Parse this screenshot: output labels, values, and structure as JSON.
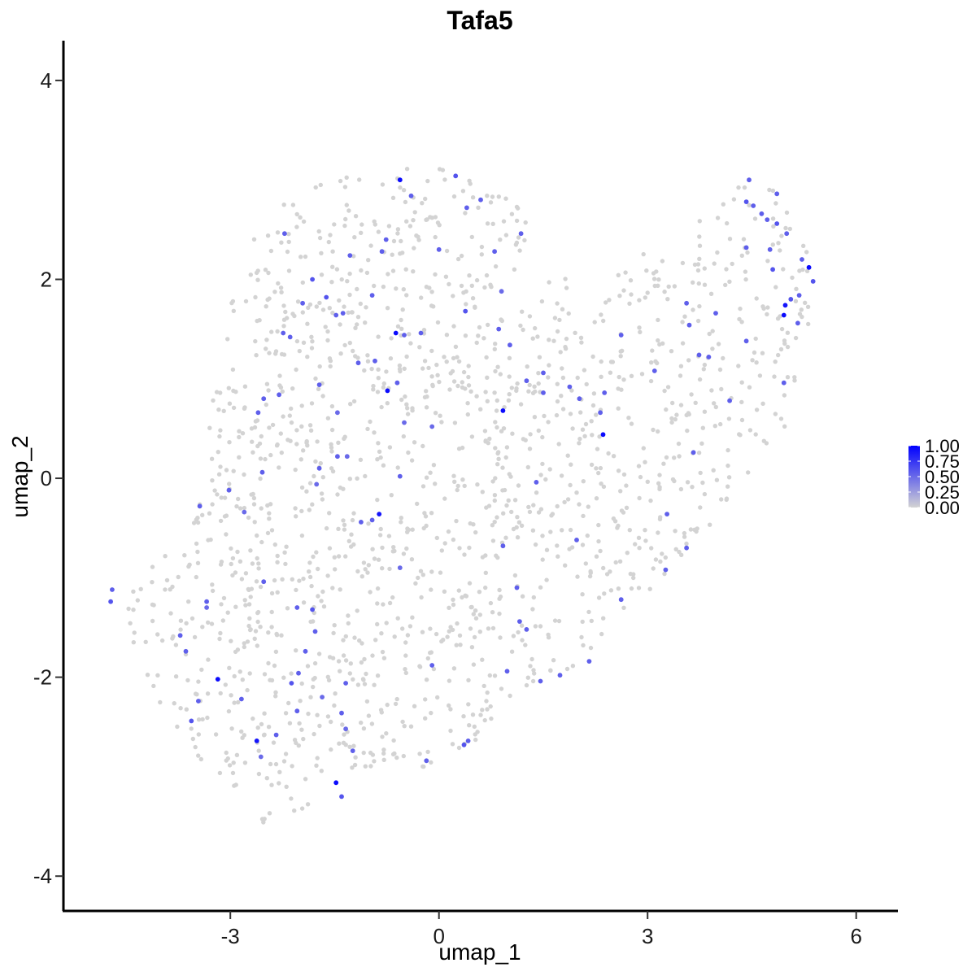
{
  "chart_data": {
    "type": "scatter",
    "title": "Tafa5",
    "xlabel": "umap_1",
    "ylabel": "umap_2",
    "xlim": [
      -5.4,
      6.6
    ],
    "ylim": [
      -4.35,
      4.4
    ],
    "x_ticks": [
      -3,
      0,
      3,
      6
    ],
    "y_ticks": [
      -4,
      -2,
      0,
      2,
      4
    ],
    "x_tick_labels": [
      "-3",
      "0",
      "3",
      "6"
    ],
    "y_tick_labels": [
      "-4",
      "-2",
      "0",
      "2",
      "4"
    ],
    "grid": false,
    "legend_position": "right",
    "color_scale": {
      "low": "#d3d3d3",
      "high": "#0000ff",
      "range": [
        0,
        1
      ],
      "ticks": [
        1.0,
        0.75,
        0.5,
        0.25,
        0.0
      ],
      "tick_labels": [
        "1.00",
        "0.75",
        "0.50",
        "0.25",
        "0.00"
      ]
    },
    "background_cell_count": 1600,
    "expressing_points": [
      [
        -4.7,
        -1.12,
        0.55
      ],
      [
        -4.72,
        -1.24,
        0.6
      ],
      [
        -3.72,
        -1.58,
        0.55
      ],
      [
        -3.64,
        -1.74,
        0.55
      ],
      [
        -3.46,
        -2.24,
        0.55
      ],
      [
        -3.56,
        -2.44,
        0.6
      ],
      [
        -3.18,
        -2.02,
        0.95
      ],
      [
        -2.84,
        -2.22,
        0.55
      ],
      [
        -2.62,
        -2.64,
        0.9
      ],
      [
        -2.56,
        -2.8,
        0.5
      ],
      [
        -2.34,
        -2.58,
        0.55
      ],
      [
        -2.04,
        -2.34,
        0.55
      ],
      [
        -2.12,
        -2.06,
        0.6
      ],
      [
        -2.02,
        -1.96,
        0.55
      ],
      [
        -1.92,
        -1.74,
        0.55
      ],
      [
        -1.78,
        -1.54,
        0.55
      ],
      [
        -1.68,
        -2.2,
        0.5
      ],
      [
        -1.48,
        -3.06,
        0.95
      ],
      [
        -1.4,
        -3.2,
        0.6
      ],
      [
        -1.24,
        -2.74,
        0.55
      ],
      [
        -1.34,
        -2.06,
        0.55
      ],
      [
        -3.34,
        -1.24,
        0.55
      ],
      [
        -3.34,
        -1.3,
        0.5
      ],
      [
        -3.02,
        -0.12,
        0.55
      ],
      [
        -2.8,
        -0.34,
        0.5
      ],
      [
        -2.54,
        0.06,
        0.55
      ],
      [
        -3.44,
        -0.28,
        0.55
      ],
      [
        -2.52,
        -1.04,
        0.55
      ],
      [
        -2.04,
        -1.3,
        0.55
      ],
      [
        -1.82,
        -1.32,
        0.6
      ],
      [
        -1.72,
        0.1,
        0.55
      ],
      [
        -1.76,
        -0.06,
        0.5
      ],
      [
        -1.46,
        0.22,
        0.55
      ],
      [
        -1.32,
        0.22,
        0.5
      ],
      [
        -0.86,
        -0.36,
        0.9
      ],
      [
        -0.96,
        -0.42,
        0.55
      ],
      [
        -1.12,
        -0.44,
        0.55
      ],
      [
        -0.56,
        -0.9,
        0.5
      ],
      [
        -0.56,
        0.02,
        0.55
      ],
      [
        -0.1,
        0.52,
        0.5
      ],
      [
        -0.5,
        0.56,
        0.5
      ],
      [
        -1.46,
        0.66,
        0.5
      ],
      [
        -2.6,
        0.66,
        0.55
      ],
      [
        -2.52,
        0.8,
        0.55
      ],
      [
        -2.3,
        0.84,
        0.55
      ],
      [
        -1.72,
        0.94,
        0.55
      ],
      [
        -0.74,
        0.88,
        0.95
      ],
      [
        -0.6,
        0.96,
        0.55
      ],
      [
        -0.92,
        1.18,
        0.55
      ],
      [
        -1.16,
        1.16,
        0.55
      ],
      [
        -0.62,
        1.46,
        0.95
      ],
      [
        -0.5,
        1.44,
        0.55
      ],
      [
        -0.26,
        1.46,
        0.55
      ],
      [
        -1.48,
        1.64,
        0.55
      ],
      [
        -1.38,
        1.66,
        0.55
      ],
      [
        -2.24,
        1.46,
        0.55
      ],
      [
        -2.14,
        1.42,
        0.55
      ],
      [
        -1.62,
        1.82,
        0.6
      ],
      [
        -1.96,
        1.76,
        0.55
      ],
      [
        -1.82,
        2.0,
        0.6
      ],
      [
        -1.28,
        2.24,
        0.55
      ],
      [
        -0.96,
        1.84,
        0.55
      ],
      [
        -0.82,
        2.28,
        0.55
      ],
      [
        -0.76,
        2.4,
        0.55
      ],
      [
        -2.22,
        2.46,
        0.55
      ],
      [
        -0.4,
        2.84,
        0.55
      ],
      [
        -0.56,
        3.0,
        0.95
      ],
      [
        0.24,
        3.04,
        0.6
      ],
      [
        0.4,
        2.72,
        0.55
      ],
      [
        0.6,
        2.8,
        0.55
      ],
      [
        0.8,
        2.28,
        0.55
      ],
      [
        0.0,
        2.3,
        0.55
      ],
      [
        0.38,
        1.68,
        0.6
      ],
      [
        0.9,
        1.88,
        0.5
      ],
      [
        0.86,
        1.5,
        0.55
      ],
      [
        1.02,
        1.34,
        0.55
      ],
      [
        1.18,
        2.46,
        0.55
      ],
      [
        1.26,
        0.98,
        0.55
      ],
      [
        1.5,
        1.06,
        0.55
      ],
      [
        1.5,
        0.86,
        0.55
      ],
      [
        0.92,
        0.68,
        0.95
      ],
      [
        1.88,
        0.92,
        0.55
      ],
      [
        2.02,
        0.8,
        0.55
      ],
      [
        2.32,
        0.66,
        0.55
      ],
      [
        2.38,
        0.86,
        0.55
      ],
      [
        2.36,
        0.44,
        0.95
      ],
      [
        2.62,
        1.44,
        0.55
      ],
      [
        3.1,
        1.08,
        0.55
      ],
      [
        3.56,
        1.76,
        0.55
      ],
      [
        3.6,
        1.54,
        0.55
      ],
      [
        3.66,
        0.26,
        0.55
      ],
      [
        3.74,
        1.24,
        0.55
      ],
      [
        3.88,
        1.22,
        0.55
      ],
      [
        3.98,
        1.66,
        0.55
      ],
      [
        4.18,
        0.78,
        0.55
      ],
      [
        4.42,
        1.38,
        0.55
      ],
      [
        4.42,
        2.32,
        0.55
      ],
      [
        4.52,
        2.74,
        0.55
      ],
      [
        4.42,
        2.78,
        0.6
      ],
      [
        4.46,
        3.0,
        0.55
      ],
      [
        4.64,
        2.66,
        0.55
      ],
      [
        4.72,
        2.6,
        0.55
      ],
      [
        4.86,
        2.86,
        0.55
      ],
      [
        4.86,
        2.56,
        0.6
      ],
      [
        4.76,
        2.3,
        0.55
      ],
      [
        4.8,
        2.1,
        0.6
      ],
      [
        5.0,
        2.46,
        0.55
      ],
      [
        5.22,
        2.2,
        0.55
      ],
      [
        5.32,
        2.12,
        0.95
      ],
      [
        5.38,
        1.98,
        0.6
      ],
      [
        5.06,
        1.8,
        0.6
      ],
      [
        4.98,
        1.74,
        0.9
      ],
      [
        4.96,
        1.64,
        0.95
      ],
      [
        5.18,
        1.84,
        0.55
      ],
      [
        5.16,
        1.56,
        0.55
      ],
      [
        4.96,
        0.96,
        0.55
      ],
      [
        3.28,
        -0.36,
        0.55
      ],
      [
        3.56,
        -0.7,
        0.55
      ],
      [
        3.26,
        -0.92,
        0.55
      ],
      [
        2.62,
        -1.22,
        0.55
      ],
      [
        2.16,
        -1.84,
        0.55
      ],
      [
        1.74,
        -1.98,
        0.55
      ],
      [
        1.46,
        -2.04,
        0.55
      ],
      [
        1.12,
        -1.1,
        0.55
      ],
      [
        1.16,
        -1.44,
        0.55
      ],
      [
        1.26,
        -1.52,
        0.55
      ],
      [
        0.92,
        -0.68,
        0.55
      ],
      [
        1.98,
        -0.62,
        0.55
      ],
      [
        1.4,
        -0.04,
        0.55
      ],
      [
        0.98,
        -1.94,
        0.55
      ],
      [
        0.36,
        -2.68,
        0.6
      ],
      [
        0.42,
        -2.64,
        0.55
      ],
      [
        -0.18,
        -2.84,
        0.55
      ],
      [
        -0.1,
        -1.88,
        0.55
      ],
      [
        -1.4,
        -2.36,
        0.55
      ],
      [
        -1.34,
        -2.52,
        0.5
      ]
    ]
  }
}
